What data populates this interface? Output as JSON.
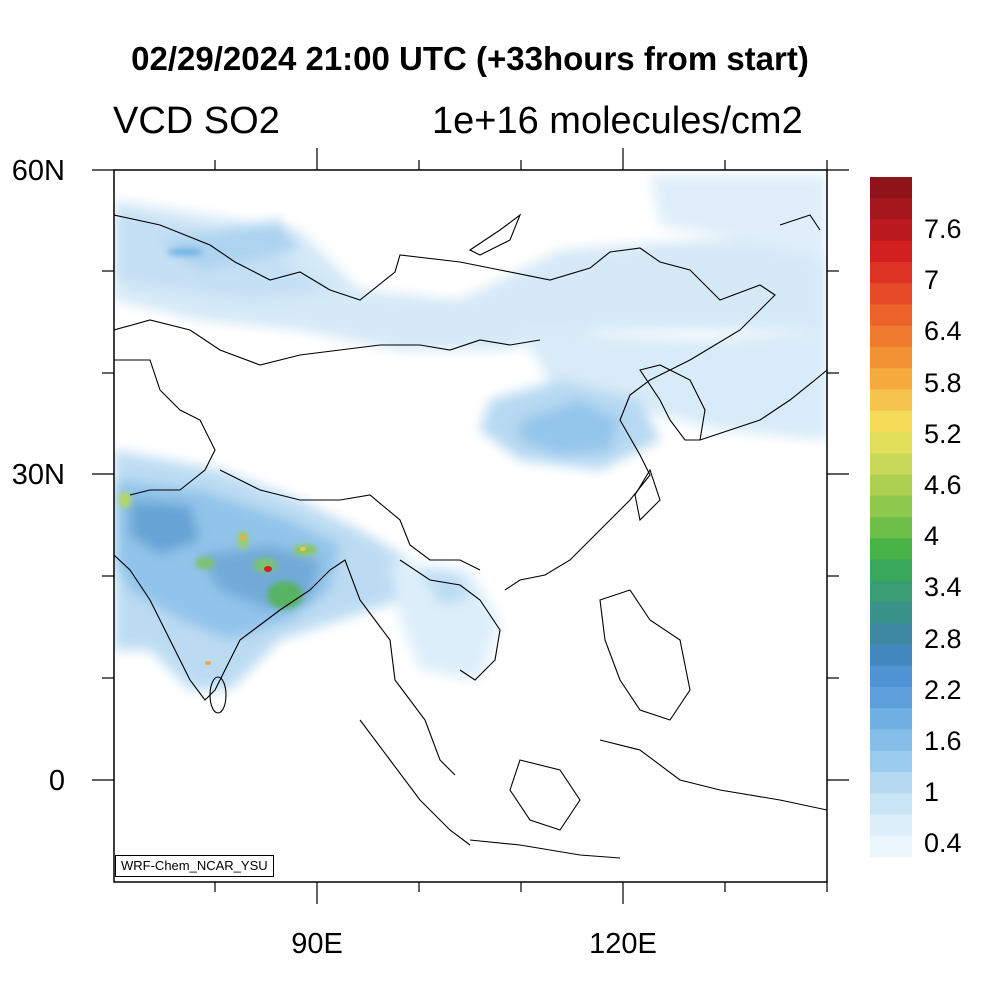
{
  "title": "02/29/2024 21:00 UTC (+33hours from start)",
  "variable": "VCD SO2",
  "units": "1e+16 molecules/cm2",
  "model_tag": "WRF-Chem_NCAR_YSU",
  "lat_labels": [
    "60N",
    "30N",
    "0"
  ],
  "lon_labels": [
    "90E",
    "120E"
  ],
  "colorbar": {
    "labels": [
      "7.6",
      "7",
      "6.4",
      "5.8",
      "5.2",
      "4.6",
      "4",
      "3.4",
      "2.8",
      "2.2",
      "1.6",
      "1",
      "0.4"
    ],
    "colors": [
      "#8e1419",
      "#a4171c",
      "#bb1b20",
      "#d1201f",
      "#dd3224",
      "#e64a27",
      "#ec622a",
      "#f07a2e",
      "#f29235",
      "#f5aa3e",
      "#f6c44c",
      "#f5db57",
      "#e2e05a",
      "#c9d957",
      "#acd052",
      "#8ec84c",
      "#6cbf48",
      "#48b447",
      "#3aa85a",
      "#3a9d74",
      "#3b928a",
      "#3e88a2",
      "#4287bd",
      "#4f93d2",
      "#5ea0dc",
      "#70b0e3",
      "#85bfe9",
      "#9ccced",
      "#b4d9f1",
      "#c9e4f5",
      "#dceef9",
      "#ebf5fc"
    ]
  }
}
